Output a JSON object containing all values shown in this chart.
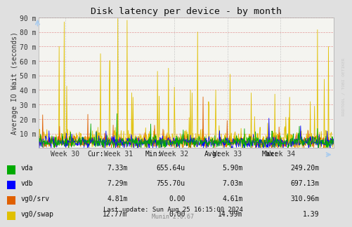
{
  "title": "Disk latency per device - by month",
  "ylabel": "Average IO Wait (seconds)",
  "bg_color": "#e0e0e0",
  "plot_bg": "#f4f4f0",
  "ytick_labels": [
    "10 m",
    "20 m",
    "30 m",
    "40 m",
    "50 m",
    "60 m",
    "70 m",
    "80 m",
    "90 m"
  ],
  "ytick_vals": [
    10,
    20,
    30,
    40,
    50,
    60,
    70,
    80,
    90
  ],
  "xtick_labels": [
    "Week 30",
    "Week 31",
    "Week 32",
    "Week 33",
    "Week 34"
  ],
  "xtick_positions": [
    0.09,
    0.27,
    0.46,
    0.64,
    0.82
  ],
  "ylim": [
    0,
    90
  ],
  "series": [
    {
      "name": "vda",
      "color": "#00aa00"
    },
    {
      "name": "vdb",
      "color": "#0000ff"
    },
    {
      "name": "vg0/srv",
      "color": "#e06000"
    },
    {
      "name": "vg0/swap",
      "color": "#e0c000"
    }
  ],
  "legend_table": {
    "headers": [
      "Cur:",
      "Min:",
      "Avg:",
      "Max:"
    ],
    "rows": [
      [
        "vda",
        "7.33m",
        "655.64u",
        "5.90m",
        "249.20m"
      ],
      [
        "vdb",
        "7.29m",
        "755.70u",
        "7.03m",
        "697.13m"
      ],
      [
        "vg0/srv",
        "4.81m",
        "0.00",
        "4.61m",
        "310.96m"
      ],
      [
        "vg0/swap",
        "12.77m",
        "0.00",
        "14.99m",
        "1.39"
      ]
    ]
  },
  "last_update": "Last update: Sun Aug 25 16:15:00 2024",
  "munin_version": "Munin 2.0.67",
  "watermark": "RRDTOOL / TOBI OETIKER",
  "n_points": 700
}
